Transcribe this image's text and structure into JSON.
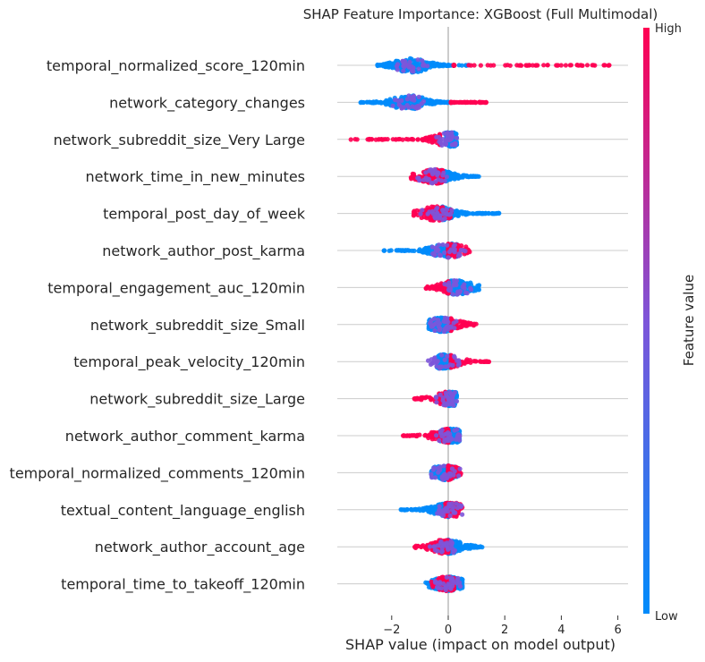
{
  "chart_data": {
    "type": "scatter",
    "title": "SHAP Feature Importance: XGBoost (Full Multimodal)",
    "xlabel": "SHAP value (impact on model output)",
    "xlim": [
      -3.95,
      6.35
    ],
    "xticks": [
      -2,
      0,
      2,
      4,
      6
    ],
    "xtick_labels": [
      "−2",
      "0",
      "2",
      "4",
      "6"
    ],
    "grid": "horizontal row lines",
    "colorbar": {
      "label": "Feature value",
      "high": "High",
      "low": "Low",
      "low_color": "#008bfb",
      "mid_color": "#7d55d9",
      "high_color": "#ff0052"
    },
    "features": [
      {
        "name": "temporal_normalized_score_120min",
        "min": -2.5,
        "max": 5.7,
        "center": -1.3,
        "low_range": [
          -2.5,
          0.8
        ],
        "high_range": [
          0.2,
          5.7
        ]
      },
      {
        "name": "network_category_changes",
        "min": -3.1,
        "max": 1.4,
        "center": -1.4,
        "low_range": [
          -3.1,
          0.2
        ],
        "high_range": [
          0.1,
          1.4
        ]
      },
      {
        "name": "network_subreddit_size_Very Large",
        "min": -3.5,
        "max": 0.3,
        "center": 0.1,
        "low_range": [
          -0.1,
          0.3
        ],
        "high_range": [
          -3.5,
          -0.3
        ]
      },
      {
        "name": "network_time_in_new_minutes",
        "min": -1.5,
        "max": 1.1,
        "center": -0.5,
        "low_range": [
          -0.3,
          1.1
        ],
        "high_range": [
          -1.5,
          -0.2
        ]
      },
      {
        "name": "temporal_post_day_of_week",
        "min": -1.3,
        "max": 1.8,
        "center": -0.4,
        "low_range": [
          -0.2,
          1.8
        ],
        "high_range": [
          -1.3,
          0.1
        ]
      },
      {
        "name": "network_author_post_karma",
        "min": -2.3,
        "max": 0.8,
        "center": 0.0,
        "low_range": [
          -2.3,
          0.3
        ],
        "high_range": [
          0.0,
          0.8
        ]
      },
      {
        "name": "temporal_engagement_auc_120min",
        "min": -0.8,
        "max": 1.1,
        "center": 0.3,
        "low_range": [
          0.0,
          1.1
        ],
        "high_range": [
          -0.8,
          0.0
        ]
      },
      {
        "name": "network_subreddit_size_Small",
        "min": -0.7,
        "max": 1.0,
        "center": -0.2,
        "low_range": [
          -0.7,
          0.1
        ],
        "high_range": [
          0.1,
          1.0
        ]
      },
      {
        "name": "temporal_peak_velocity_120min",
        "min": -0.8,
        "max": 1.5,
        "center": -0.2,
        "low_range": [
          -0.4,
          0.1
        ],
        "high_range": [
          0.1,
          1.5
        ]
      },
      {
        "name": "network_subreddit_size_Large",
        "min": -1.2,
        "max": 0.3,
        "center": 0.1,
        "low_range": [
          -0.1,
          0.3
        ],
        "high_range": [
          -1.2,
          -0.1
        ]
      },
      {
        "name": "network_author_comment_karma",
        "min": -1.6,
        "max": 0.4,
        "center": 0.1,
        "low_range": [
          -0.3,
          0.4
        ],
        "high_range": [
          -1.6,
          0.0
        ]
      },
      {
        "name": "temporal_normalized_comments_120min",
        "min": -0.6,
        "max": 0.5,
        "center": -0.1,
        "low_range": [
          -0.6,
          0.3
        ],
        "high_range": [
          0.0,
          0.5
        ]
      },
      {
        "name": "textual_content_language_english",
        "min": -1.7,
        "max": 0.5,
        "center": 0.1,
        "low_range": [
          -1.7,
          0.0
        ],
        "high_range": [
          -0.1,
          0.5
        ]
      },
      {
        "name": "network_author_account_age",
        "min": -1.2,
        "max": 1.2,
        "center": -0.1,
        "low_range": [
          0.0,
          1.2
        ],
        "high_range": [
          -1.2,
          0.0
        ]
      },
      {
        "name": "temporal_time_to_takeoff_120min",
        "min": -0.8,
        "max": 0.5,
        "center": 0.0,
        "low_range": [
          -0.8,
          0.5
        ],
        "high_range": [
          -0.6,
          0.2
        ]
      }
    ]
  }
}
